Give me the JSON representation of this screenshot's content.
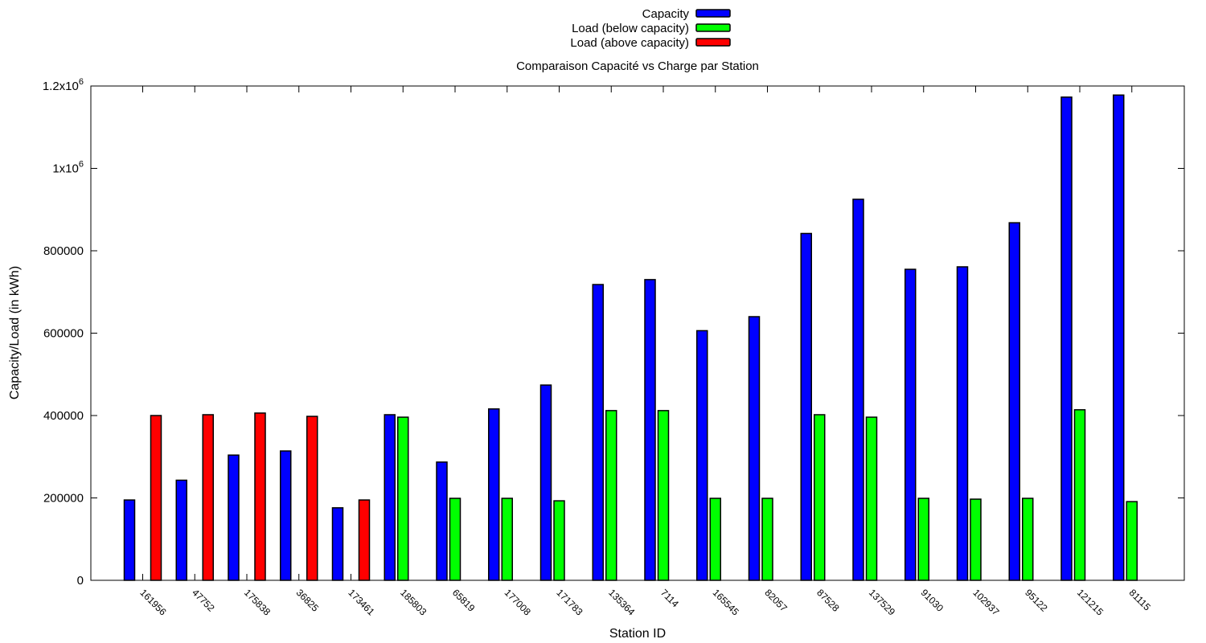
{
  "chart_data": {
    "type": "bar",
    "title": "Comparaison Capacité vs Charge par Station",
    "xlabel": "Station ID",
    "ylabel": "Capacity/Load (in kWh)",
    "ylim": [
      0,
      1200000
    ],
    "yticks": [
      {
        "value": 0,
        "base": "0",
        "exp": ""
      },
      {
        "value": 200000,
        "base": "200000",
        "exp": ""
      },
      {
        "value": 400000,
        "base": "400000",
        "exp": ""
      },
      {
        "value": 600000,
        "base": "600000",
        "exp": ""
      },
      {
        "value": 800000,
        "base": "800000",
        "exp": ""
      },
      {
        "value": 1000000,
        "base": "1x10",
        "exp": "6"
      },
      {
        "value": 1200000,
        "base": "1.2x10",
        "exp": "6"
      }
    ],
    "grid": false,
    "legend_position": "top-center",
    "categories": [
      "161956",
      "47752",
      "175838",
      "36825",
      "173461",
      "185803",
      "65819",
      "177008",
      "171783",
      "135364",
      "7114",
      "165545",
      "82057",
      "87528",
      "137529",
      "91030",
      "102937",
      "95122",
      "121215",
      "81115"
    ],
    "series": [
      {
        "name": "Capacity",
        "color": "#0000ff",
        "values": [
          195000,
          243000,
          304000,
          314000,
          176000,
          402000,
          287000,
          416000,
          474000,
          718000,
          730000,
          606000,
          640000,
          842000,
          925000,
          755000,
          761000,
          868000,
          1173000,
          1178000
        ]
      },
      {
        "name": "Load (below capacity)",
        "color": "#00ff00",
        "values": [
          null,
          null,
          null,
          null,
          null,
          396000,
          199000,
          199000,
          193000,
          412000,
          412000,
          199000,
          199000,
          402000,
          396000,
          199000,
          197000,
          199000,
          414000,
          191000
        ]
      },
      {
        "name": "Load (above capacity)",
        "color": "#ff0000",
        "values": [
          400000,
          402000,
          406000,
          398000,
          195000,
          null,
          null,
          null,
          null,
          null,
          null,
          null,
          null,
          null,
          null,
          null,
          null,
          null,
          null,
          null
        ]
      }
    ]
  }
}
